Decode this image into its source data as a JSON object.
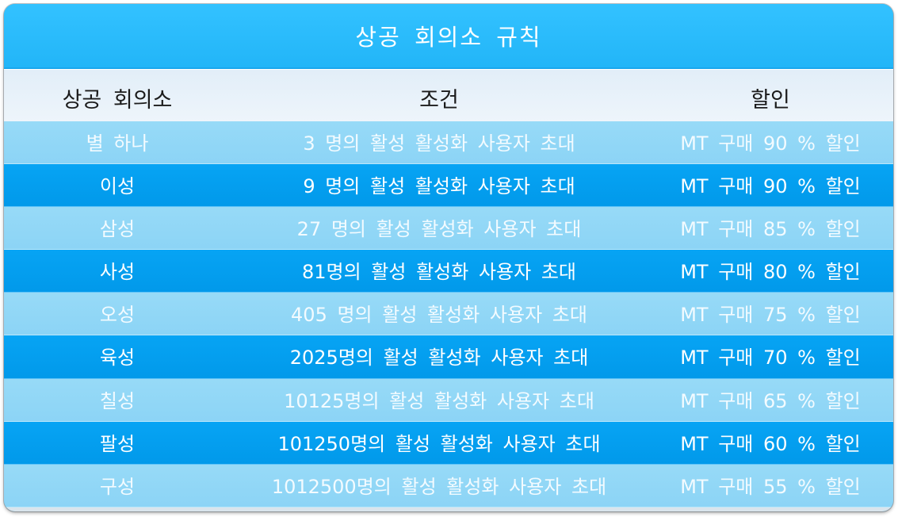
{
  "title": "상공 회의소 규칙",
  "columns": [
    "상공 회의소",
    "조건",
    "할인"
  ],
  "rows": [
    {
      "level": "별 하나",
      "condition": "3 명의 활성 활성화 사용자 초대",
      "discount": "MT 구매 90 % 할인"
    },
    {
      "level": "이성",
      "condition": "9 명의 활성 활성화 사용자 초대",
      "discount": "MT 구매 90 % 할인"
    },
    {
      "level": "삼성",
      "condition": "27 명의 활성 활성화 사용자 초대",
      "discount": "MT 구매 85 % 할인"
    },
    {
      "level": "사성",
      "condition": "81명의 활성 활성화 사용자 초대",
      "discount": "MT 구매 80 % 할인"
    },
    {
      "level": "오성",
      "condition": "405 명의 활성 활성화 사용자 초대",
      "discount": "MT 구매 75 % 할인"
    },
    {
      "level": "육성",
      "condition": "2025명의 활성 활성화 사용자 초대",
      "discount": "MT 구매 70 % 할인"
    },
    {
      "level": "칠성",
      "condition": "10125명의 활성 활성화 사용자 초대",
      "discount": "MT 구매 65 % 할인"
    },
    {
      "level": "팔성",
      "condition": "101250명의 활성 활성화 사용자 초대",
      "discount": "MT 구매 60 % 할인"
    },
    {
      "level": "구성",
      "condition": "1012500명의 활성 활성화 사용자 초대",
      "discount": "MT 구매 55 % 할인"
    }
  ],
  "colors": {
    "title_bar": "#2cbdfc",
    "header_bg": "#e8f1f9",
    "row_light": "#92d7f6",
    "row_dark": "#04a0f0"
  }
}
